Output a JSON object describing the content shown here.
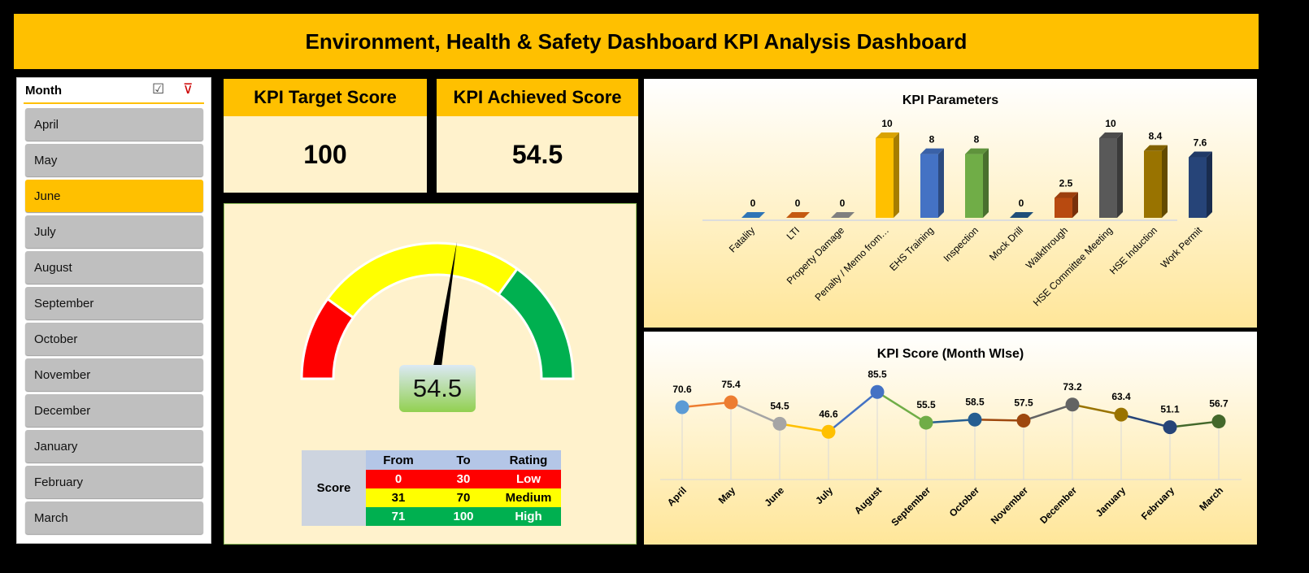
{
  "title": "Environment, Health & Safety Dashboard KPI Analysis Dashboard",
  "slicer": {
    "header": "Month",
    "icons": [
      "multi-select-icon",
      "clear-filter-icon"
    ],
    "selected": "June",
    "items": [
      "April",
      "May",
      "June",
      "July",
      "August",
      "September",
      "October",
      "November",
      "December",
      "January",
      "February",
      "March"
    ]
  },
  "kpi_target": {
    "label": "KPI Target Score",
    "value": "100"
  },
  "kpi_achieved": {
    "label": "KPI Achieved Score",
    "value": "54.5"
  },
  "gauge": {
    "value": 54.5,
    "display": "54.5",
    "min": 0,
    "max": 100,
    "bands": [
      {
        "from": 0,
        "to": 20,
        "color": "#ff0000"
      },
      {
        "from": 20,
        "to": 70,
        "color": "#ffff00"
      },
      {
        "from": 70,
        "to": 100,
        "color": "#00b050"
      }
    ]
  },
  "score_table": {
    "row_label": "Score",
    "headers": [
      "From",
      "To",
      "Rating"
    ],
    "rows": [
      {
        "from": "0",
        "to": "30",
        "rating": "Low",
        "color": "#ff0000",
        "text": "#fff"
      },
      {
        "from": "31",
        "to": "70",
        "rating": "Medium",
        "color": "#ffff00",
        "text": "#000"
      },
      {
        "from": "71",
        "to": "100",
        "rating": "High",
        "color": "#00b050",
        "text": "#fff"
      }
    ]
  },
  "chart_data": [
    {
      "type": "bar",
      "title": "KPI Parameters",
      "categories": [
        "Fatality",
        "LTI",
        "Property Damage",
        "Penalty / Memo from…",
        "EHS Training",
        "Inspection",
        "Mock Drill",
        "Walkthrough",
        "HSE Committee Meeting",
        "HSE Induction",
        "Work Permit"
      ],
      "values": [
        0,
        0,
        0,
        10,
        8,
        8,
        0,
        2.5,
        10,
        8.4,
        7.6
      ],
      "labels": [
        "0",
        "0",
        "0",
        "10",
        "8",
        "8",
        "0",
        "2.5",
        "10",
        "8.4",
        "7.6"
      ],
      "colors": [
        "#2e75b6",
        "#c55a11",
        "#7f7f7f",
        "#ffc000",
        "#4472c4",
        "#70ad47",
        "#1f4e79",
        "#b84a10",
        "#595959",
        "#997300",
        "#264478"
      ]
    },
    {
      "type": "line",
      "title": "KPI Score (Month WIse)",
      "categories": [
        "April",
        "May",
        "June",
        "July",
        "August",
        "September",
        "October",
        "November",
        "December",
        "January",
        "February",
        "March"
      ],
      "values": [
        70.6,
        75.4,
        54.5,
        46.6,
        85.5,
        55.5,
        58.5,
        57.5,
        73.2,
        63.4,
        51.1,
        56.7
      ],
      "labels": [
        "70.6",
        "75.4",
        "54.5",
        "46.6",
        "85.5",
        "55.5",
        "58.5",
        "57.5",
        "73.2",
        "63.4",
        "51.1",
        "56.7"
      ],
      "colors": [
        "#5b9bd5",
        "#ed7d31",
        "#a5a5a5",
        "#ffc000",
        "#4472c4",
        "#70ad47",
        "#255e91",
        "#9e480e",
        "#636363",
        "#997300",
        "#264478",
        "#43682b"
      ]
    }
  ]
}
